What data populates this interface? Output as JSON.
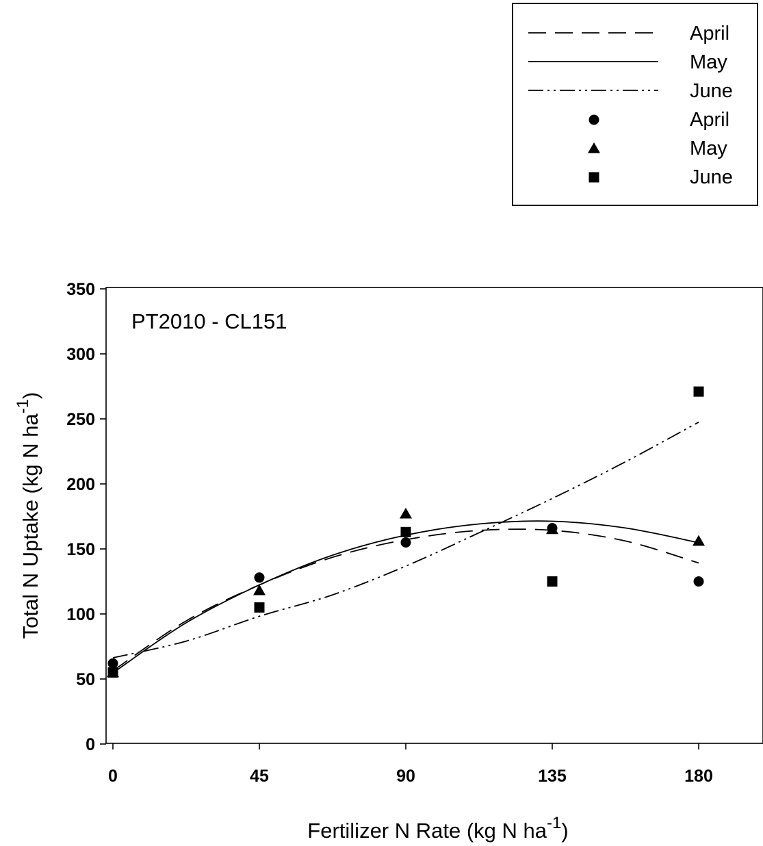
{
  "chart_data": {
    "type": "scatter",
    "annotation": "PT2010 - CL151",
    "xlabel": "Fertilizer N Rate (kg N ha",
    "xlabel_superscript": "-1",
    "xlabel_suffix": ")",
    "ylabel": "Total N Uptake (kg N ha",
    "ylabel_superscript": "-1",
    "ylabel_suffix": ")",
    "xlim": [
      0,
      200
    ],
    "ylim": [
      0,
      350
    ],
    "xticks": [
      0,
      45,
      90,
      135,
      180
    ],
    "yticks": [
      0,
      50,
      100,
      150,
      200,
      250,
      300,
      350
    ],
    "grid": false,
    "legend_position": "top-right",
    "legend": {
      "entries": [
        {
          "label": "April",
          "kind": "line",
          "style": "long-dash"
        },
        {
          "label": "May",
          "kind": "line",
          "style": "solid"
        },
        {
          "label": "June",
          "kind": "line",
          "style": "dash-dot-dot"
        },
        {
          "label": "April",
          "kind": "marker",
          "marker": "circle"
        },
        {
          "label": "May",
          "kind": "marker",
          "marker": "triangle"
        },
        {
          "label": "June",
          "kind": "marker",
          "marker": "square"
        }
      ]
    },
    "scatter_series": [
      {
        "name": "April",
        "marker": "circle",
        "x": [
          0,
          45,
          90,
          135,
          180
        ],
        "y": [
          62,
          128,
          155,
          166,
          125
        ]
      },
      {
        "name": "May",
        "marker": "triangle",
        "x": [
          0,
          45,
          90,
          135,
          180
        ],
        "y": [
          55,
          118,
          177,
          165,
          156
        ]
      },
      {
        "name": "June",
        "marker": "square",
        "x": [
          0,
          45,
          90,
          135,
          180
        ],
        "y": [
          55,
          105,
          163,
          125,
          271
        ]
      }
    ],
    "fit_lines": [
      {
        "name": "April",
        "style": "long-dash",
        "x": [
          0,
          22.5,
          45,
          67.5,
          90,
          112.5,
          135,
          157.5,
          180
        ],
        "y": [
          56.3,
          94.7,
          122.3,
          143.6,
          157.1,
          164.2,
          164.3,
          156.1,
          139.2
        ]
      },
      {
        "name": "May",
        "style": "solid",
        "x": [
          0,
          22.5,
          45,
          67.5,
          90,
          112.5,
          135,
          157.5,
          180
        ],
        "y": [
          54.7,
          93.2,
          122.3,
          145.2,
          160.6,
          169.2,
          171.3,
          166.1,
          154.8
        ]
      },
      {
        "name": "June",
        "style": "dash-dot-dot",
        "x": [
          0,
          22.5,
          45,
          67.5,
          90,
          112.5,
          135,
          157.5,
          180
        ],
        "y": [
          66.3,
          79.1,
          98.2,
          114.7,
          136.8,
          162.4,
          188.8,
          217.0,
          247.5
        ]
      }
    ]
  }
}
